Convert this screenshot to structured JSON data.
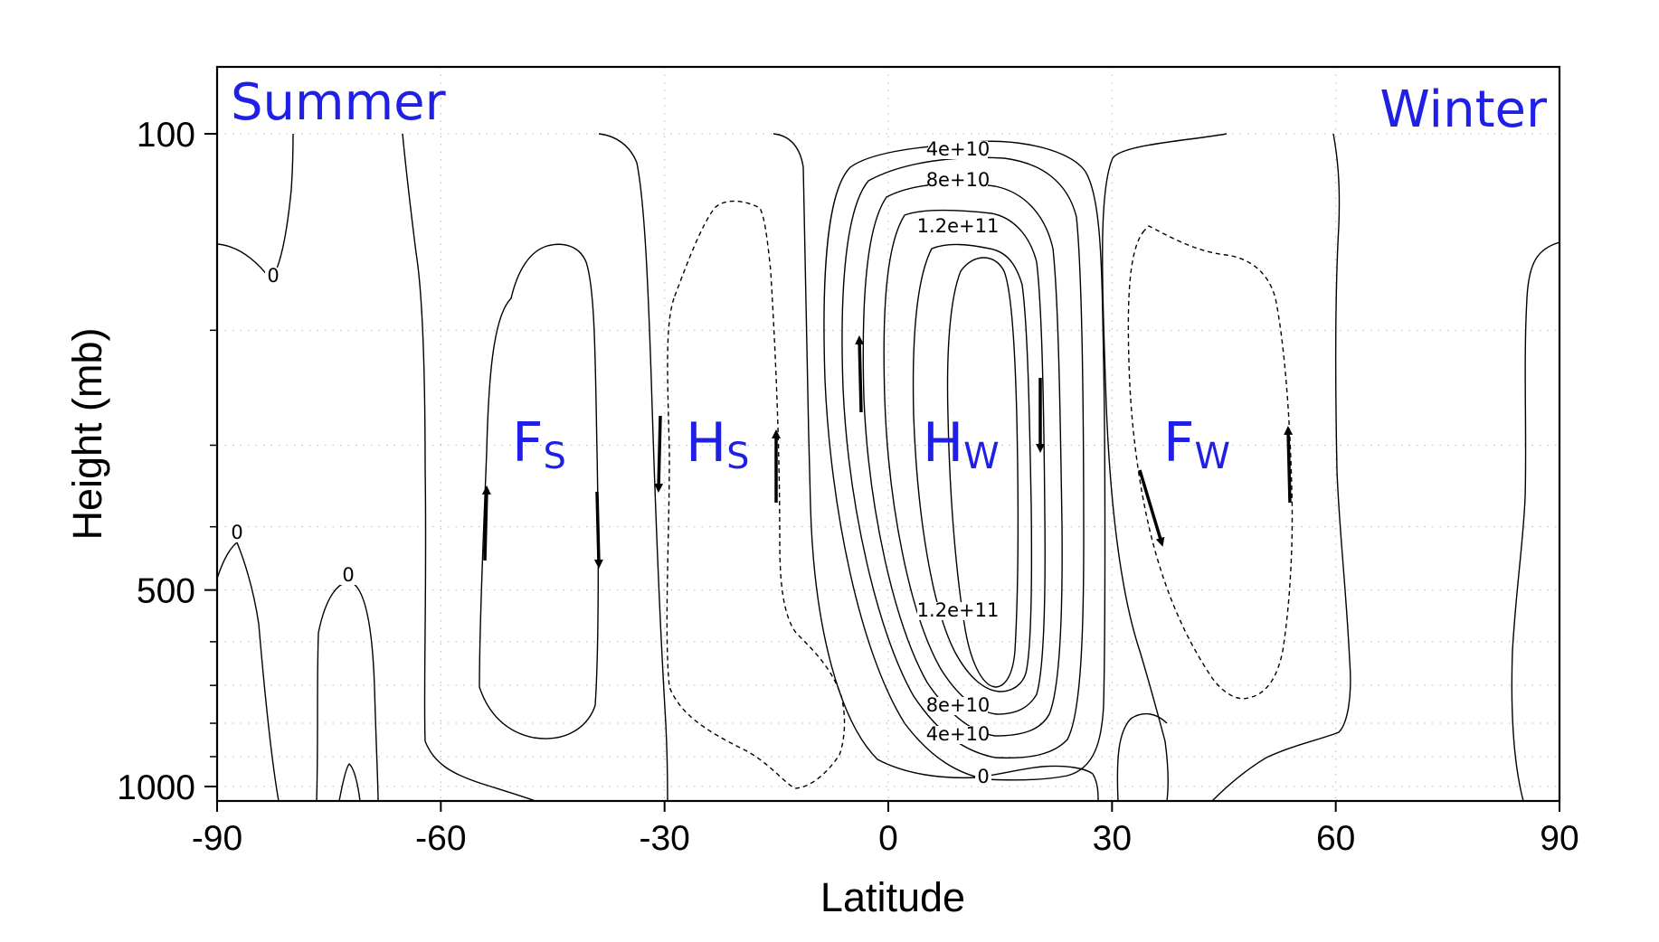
{
  "chart_data": {
    "type": "contour",
    "title": "",
    "xlabel": "Latitude",
    "ylabel": "Height (mb)",
    "xlim": [
      -90,
      90
    ],
    "ylim": [
      1000,
      60
    ],
    "y_scale": "log",
    "grid": true,
    "x_ticks": [
      -90,
      -60,
      -30,
      0,
      30,
      60,
      90
    ],
    "x_tick_labels": [
      "-90",
      "-60",
      "-30",
      "0",
      "30",
      "60",
      "90"
    ],
    "y_ticks": [
      100,
      500,
      1000
    ],
    "y_tick_labels": [
      "100",
      "500",
      "1000"
    ],
    "hemisphere_labels": {
      "left": "Summer",
      "right": "Winter"
    },
    "contour_labels": [
      "4e+10",
      "8e+10",
      "1.2e+11",
      "1.2e+11",
      "8e+10",
      "4e+10",
      "0",
      "0",
      "0",
      "0"
    ],
    "cells": [
      {
        "name": "F",
        "subscript": "S",
        "center": [
          -44,
          500
        ]
      },
      {
        "name": "H",
        "subscript": "S",
        "center": [
          -23,
          500
        ]
      },
      {
        "name": "H",
        "subscript": "W",
        "center": [
          10,
          500
        ]
      },
      {
        "name": "F",
        "subscript": "W",
        "center": [
          42,
          500
        ]
      }
    ],
    "circulation_arrows": [
      {
        "lat": -54,
        "direction": "up"
      },
      {
        "lat": -39,
        "direction": "down"
      },
      {
        "lat": -31,
        "direction": "down"
      },
      {
        "lat": -15,
        "direction": "up"
      },
      {
        "lat": -4,
        "direction": "up"
      },
      {
        "lat": 20,
        "direction": "down"
      },
      {
        "lat": 35,
        "direction": "down"
      },
      {
        "lat": 54,
        "direction": "up"
      }
    ]
  }
}
